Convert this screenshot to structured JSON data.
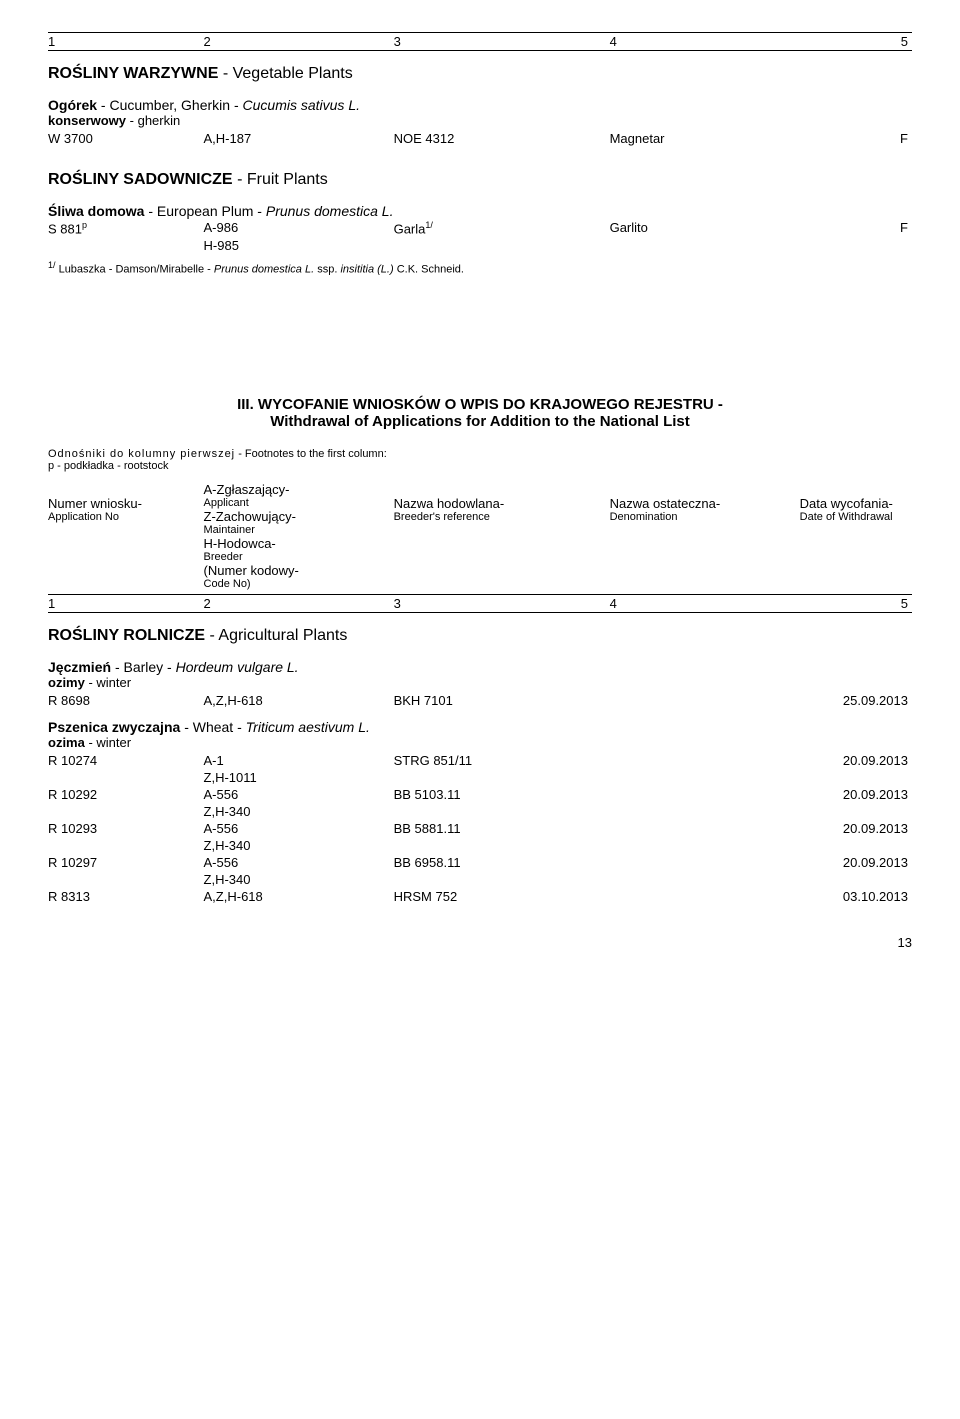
{
  "colHeaders": [
    "1",
    "2",
    "3",
    "4",
    "5"
  ],
  "sections": {
    "veg": {
      "title_pl": "ROŚLINY WARZYWNE",
      "title_en": "- Vegetable Plants",
      "species": {
        "name_pl": "Ogórek",
        "name_en": "- Cucumber, Gherkin -",
        "latin": "Cucumis sativus L.",
        "subtype_pl": "konserwowy",
        "subtype_en": "- gherkin",
        "rows": [
          {
            "c1": "W 3700",
            "c2": "A,H-187",
            "c3": "NOE 4312",
            "c4": "Magnetar",
            "c5": "F"
          }
        ]
      }
    },
    "fruit": {
      "title_pl": "ROŚLINY SADOWNICZE",
      "title_en": "- Fruit Plants",
      "species": {
        "name_pl": "Śliwa domowa",
        "name_en": "- European Plum -",
        "latin": "Prunus domestica L.",
        "rows": [
          {
            "c1": "S 881",
            "c1_sup": "p",
            "c2a": "A-986",
            "c2b": "H-985",
            "c3": "Garla",
            "c3_sup": "1/",
            "c4": "Garlito",
            "c5": "F"
          }
        ],
        "footnote_prefix": "1/ Lubaszka -",
        "footnote_mid": "Damson/Mirabelle -",
        "footnote_latin": "Prunus domestica L.",
        "footnote_tail1": "ssp.",
        "footnote_tail_italic": "insititia (L.)",
        "footnote_tail3": "C.K. Schneid."
      }
    },
    "withdrawal": {
      "roman": "III.",
      "line1_pl": "WYCOFANIE WNIOSKÓW O WPIS DO KRAJOWEGO REJESTRU -",
      "line2_en": "Withdrawal of Applications for Addition to the National List",
      "refs_pl": "Odnośniki do kolumny pierwszej",
      "refs_en": "- Footnotes to the first column:",
      "refs_p": "p - podkładka - rootstock",
      "legend": {
        "c1_main": "Numer wniosku-",
        "c1_sub": "Application No",
        "c2": [
          {
            "main": "A-Zgłaszający-",
            "sub": "Applicant"
          },
          {
            "main": "Z-Zachowujący-",
            "sub": "Maintainer"
          },
          {
            "main": "H-Hodowca-",
            "sub": "Breeder"
          },
          {
            "main": "(Numer kodowy-",
            "sub": "Code No)"
          }
        ],
        "c3_main": "Nazwa hodowlana-",
        "c3_sub": "Breeder's reference",
        "c4_main": "Nazwa ostateczna-",
        "c4_sub": "Denomination",
        "c5_main": "Data wycofania-",
        "c5_sub": "Date of Withdrawal"
      }
    },
    "agri": {
      "title_pl": "ROŚLINY ROLNICZE",
      "title_en": "- Agricultural Plants",
      "barley": {
        "name_pl": "Jęczmień",
        "name_en": "- Barley -",
        "latin": "Hordeum vulgare L.",
        "subtype_pl": "ozimy",
        "subtype_en": "- winter",
        "rows": [
          {
            "c1": "R 8698",
            "c2": "A,Z,H-618",
            "c3": "BKH 7101",
            "c4": "",
            "c5": "25.09.2013"
          }
        ]
      },
      "wheat": {
        "name_pl": "Pszenica zwyczajna",
        "name_en": "- Wheat -",
        "latin": "Triticum aestivum L.",
        "subtype_pl": "ozima",
        "subtype_en": "- winter",
        "rows": [
          {
            "c1": "R 10274",
            "c2a": "A-1",
            "c2b": "Z,H-1011",
            "c3": "STRG 851/11",
            "c4": "",
            "c5": "20.09.2013"
          },
          {
            "c1": "R 10292",
            "c2a": "A-556",
            "c2b": "Z,H-340",
            "c3": "BB 5103.11",
            "c4": "",
            "c5": "20.09.2013"
          },
          {
            "c1": "R 10293",
            "c2a": "A-556",
            "c2b": "Z,H-340",
            "c3": "BB 5881.11",
            "c4": "",
            "c5": "20.09.2013"
          },
          {
            "c1": "R 10297",
            "c2a": "A-556",
            "c2b": "Z,H-340",
            "c3": "BB 6958.11",
            "c4": "",
            "c5": "20.09.2013"
          },
          {
            "c1": "R 8313",
            "c2": "A,Z,H-618",
            "c3": "HRSM 752",
            "c4": "",
            "c5": "03.10.2013"
          }
        ]
      }
    }
  },
  "pageNumber": "13"
}
